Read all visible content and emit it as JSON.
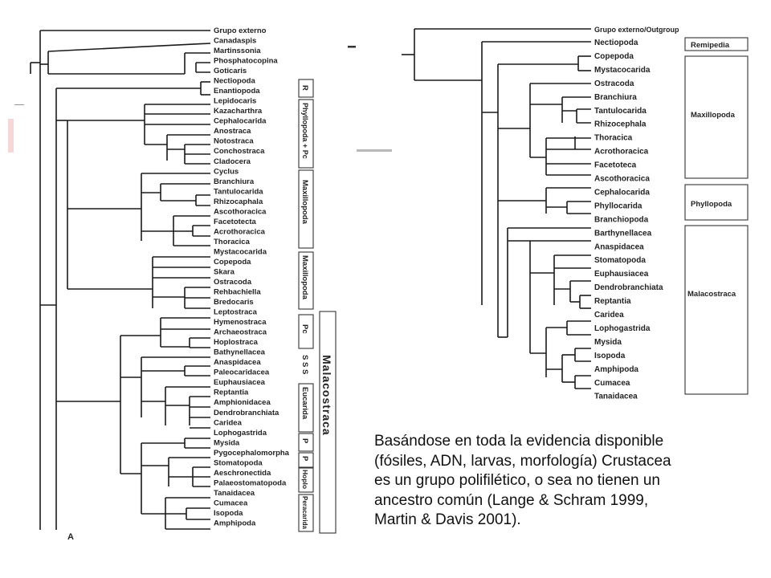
{
  "left_tree": {
    "panel_label": "A",
    "taxa": [
      "Grupo externo",
      "Canadaspis",
      "Martinssonia",
      "Phosphatocopina",
      "Goticaris",
      "Nectiopoda",
      "Enantiopoda",
      "Lepidocaris",
      "Kazacharthra",
      "Cephalocarida",
      "Anostraca",
      "Notostraca",
      "Conchostraca",
      "Cladocera",
      "Cyclus",
      "Branchiura",
      "Tantulocarida",
      "Rhizocaphala",
      "Ascothoracica",
      "Facetotecta",
      "Acrothoracica",
      "Thoracica",
      "Mystacocarida",
      "Copepoda",
      "Skara",
      "Ostracoda",
      "Rehbachiella",
      "Bredocaris",
      "Leptostraca",
      "Hymenostraca",
      "Archaeostraca",
      "Hoplostraca",
      "Bathynellacea",
      "Anaspidacea",
      "Paleocaridacea",
      "Euphausiacea",
      "Reptantia",
      "Amphionidacea",
      "Dendrobranchiata",
      "Caridea",
      "Lophogastrida",
      "Mysida",
      "Pygocephalomorpha",
      "Stomatopoda",
      "Aeschronectida",
      "Palaeostomatopoda",
      "Tanaidacea",
      "Cumacea",
      "Isopoda",
      "Amphipoda"
    ],
    "groups": [
      "R",
      "Phyllopoda + Pc",
      "Maxillopoda",
      "Maxillopoda",
      "Pc",
      "S S S",
      "Eucarida",
      "P",
      "P",
      "Hoplo",
      "Peracarida"
    ],
    "super_group": "Malacostraca"
  },
  "right_tree": {
    "taxa": [
      "Grupo externo/Outgroup",
      "Nectiopoda",
      "Copepoda",
      "Mystacocarida",
      "Ostracoda",
      "Branchiura",
      "Tantulocarida",
      "Rhizocephala",
      "Thoracica",
      "Acrothoracica",
      "Facetoteca",
      "Ascothoracica",
      "Cephalocarida",
      "Phyllocarida",
      "Branchiopoda",
      "Barthynellacea",
      "Anaspidacea",
      "Stomatopoda",
      "Euphausiacea",
      "Dendrobranchiata",
      "Reptantia",
      "Caridea",
      "Lophogastrida",
      "Mysida",
      "Isopoda",
      "Amphipoda",
      "Cumacea",
      "Tanaidacea"
    ],
    "groups": [
      "Remipedia",
      "Maxillopoda",
      "Phyllopoda",
      "Malacostraca"
    ]
  },
  "caption": {
    "line1": "Basándose en toda la evidencia disponible",
    "line2": "(fósiles, ADN, larvas, morfología) Crustacea",
    "line3": "es un grupo polifilético, o sea no tienen un",
    "line4": "ancestro común (Lange & Schram 1999,",
    "line5": "Martin & Davis 2001)."
  },
  "colors": {
    "line": "#1a1a1a",
    "text": "#222222",
    "accent_faint": "#f2d0d0"
  }
}
